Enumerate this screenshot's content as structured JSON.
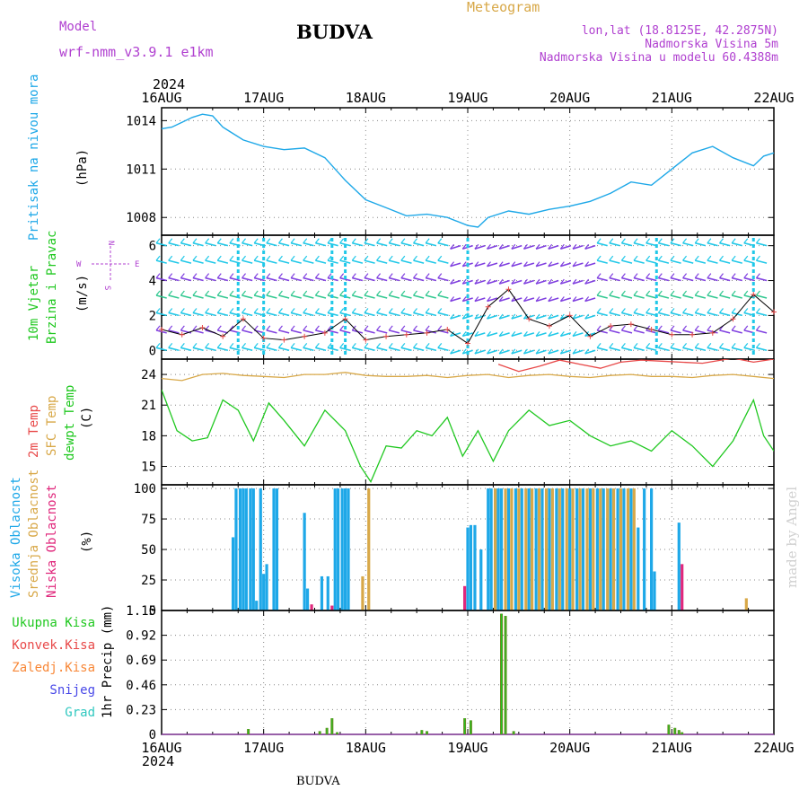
{
  "header": {
    "model_label": "Model",
    "model_name": "wrf-nmm_v3.9.1 e1km",
    "station_title": "BUDVA",
    "meteogram_label": "Meteogram",
    "coords": "lon,lat (18.8125E, 42.2875N)",
    "altitude": "Nadmorska Visina 5m",
    "model_altitude": "Nadmorska Visina u modelu 60.4388m",
    "bottom_station": "BUDVA",
    "watermark": "made by Angel"
  },
  "colors": {
    "pressure": "#1ea8e8",
    "temp2m": "#e84848",
    "sfc": "#d8a848",
    "dewpt": "#20c820",
    "cloud_high": "#1ea8e8",
    "cloud_mid": "#d8a848",
    "cloud_low": "#e0287c",
    "precip_total": "#20c820",
    "precip_conv": "#e84848",
    "precip_strat": "#f88838",
    "snow": "#4848e8",
    "graupel": "#30c8c0",
    "purple": "#b040d0"
  },
  "time_axis": {
    "year": "2024",
    "day_labels": [
      "16AUG",
      "17AUG",
      "18AUG",
      "19AUG",
      "20AUG",
      "21AUG",
      "22AUG"
    ],
    "start": "2024-08-16 00:00",
    "end": "2024-08-22 00:00"
  },
  "chart_data": [
    {
      "type": "line",
      "panel": "pressure",
      "ylabel_1": "Pritisak na nivou mora",
      "ylabel_2": "(hPa)",
      "yticks": [
        1008,
        1011,
        1014
      ],
      "ylim": [
        1006.9,
        1014.8
      ],
      "grid": true,
      "series": [
        {
          "x_days": [
            0,
            0.1,
            0.2,
            0.3,
            0.4,
            0.5,
            0.6,
            0.8,
            1.0,
            1.2,
            1.4,
            1.6,
            1.8,
            2.0,
            2.2,
            2.4,
            2.6,
            2.8,
            3.0,
            3.1,
            3.2,
            3.4,
            3.6,
            3.8,
            4.0,
            4.2,
            4.4,
            4.6,
            4.8,
            5.0,
            5.2,
            5.4,
            5.6,
            5.8,
            5.9,
            6.0
          ],
          "values": [
            1013.5,
            1013.6,
            1013.9,
            1014.2,
            1014.4,
            1014.3,
            1013.6,
            1012.8,
            1012.4,
            1012.2,
            1012.3,
            1011.7,
            1010.3,
            1009.1,
            1008.6,
            1008.1,
            1008.2,
            1008.0,
            1007.5,
            1007.4,
            1008.0,
            1008.4,
            1008.2,
            1008.5,
            1008.7,
            1009.0,
            1009.5,
            1010.2,
            1010.0,
            1011.0,
            1012.0,
            1012.4,
            1011.7,
            1011.2,
            1011.8,
            1012.0
          ]
        }
      ]
    },
    {
      "type": "line",
      "panel": "wind",
      "ylabel_1": "10m Vjetar",
      "ylabel_2": "Brzina i Pravac",
      "ylabel_3": "(m/s)",
      "compass": {
        "n": "N",
        "s": "S",
        "w": "W",
        "e": "E"
      },
      "yticks": [
        0,
        2,
        4,
        6
      ],
      "ylim": [
        -0.5,
        6.6
      ],
      "grid": true,
      "series": [
        {
          "x_days": [
            0,
            0.2,
            0.4,
            0.6,
            0.8,
            1.0,
            1.2,
            1.4,
            1.6,
            1.8,
            2.0,
            2.2,
            2.4,
            2.6,
            2.8,
            3.0,
            3.2,
            3.4,
            3.6,
            3.8,
            4.0,
            4.2,
            4.4,
            4.6,
            4.8,
            5.0,
            5.2,
            5.4,
            5.6,
            5.8,
            6.0
          ],
          "values": [
            1.2,
            0.9,
            1.3,
            0.8,
            1.8,
            0.7,
            0.6,
            0.8,
            1.0,
            1.8,
            0.6,
            0.8,
            0.9,
            1.0,
            1.2,
            0.4,
            2.5,
            3.5,
            1.8,
            1.4,
            2.0,
            0.8,
            1.4,
            1.5,
            1.2,
            0.9,
            0.9,
            1.0,
            1.8,
            3.2,
            2.2
          ]
        }
      ]
    },
    {
      "type": "line",
      "panel": "temperature",
      "ylabel_1": "2m Temp",
      "ylabel_2": "SFC Temp",
      "ylabel_3": "dewpt Temp",
      "ylabel_4": "(C)",
      "yticks": [
        15,
        18,
        21,
        24
      ],
      "ylim": [
        13.2,
        25.5
      ],
      "grid": true,
      "series": [
        {
          "name": "2m Temp",
          "x_days": [
            3.3,
            3.5,
            3.7,
            3.9,
            4.1,
            4.3,
            4.5,
            4.7,
            4.9,
            5.3,
            5.6,
            5.8,
            6.0
          ],
          "values": [
            25.0,
            24.3,
            24.8,
            25.4,
            25.0,
            24.6,
            25.2,
            25.4,
            25.3,
            25.1,
            25.6,
            25.2,
            25.5
          ]
        },
        {
          "name": "SFC Temp",
          "x_days": [
            0,
            0.2,
            0.4,
            0.6,
            0.8,
            1.0,
            1.2,
            1.4,
            1.6,
            1.8,
            2.0,
            2.2,
            2.4,
            2.6,
            2.8,
            3.0,
            3.2,
            3.4,
            3.6,
            3.8,
            4.0,
            4.2,
            4.4,
            4.6,
            4.8,
            5.0,
            5.2,
            5.4,
            5.6,
            5.8,
            6.0
          ],
          "values": [
            23.6,
            23.4,
            24.0,
            24.1,
            23.9,
            23.8,
            23.7,
            24.0,
            24.0,
            24.2,
            23.9,
            23.8,
            23.8,
            23.9,
            23.7,
            23.9,
            24.0,
            23.7,
            23.9,
            24.0,
            23.8,
            23.7,
            23.9,
            24.0,
            23.8,
            23.8,
            23.7,
            23.9,
            24.0,
            23.8,
            23.6
          ]
        },
        {
          "name": "dewpt Temp",
          "x_days": [
            0,
            0.15,
            0.3,
            0.45,
            0.6,
            0.75,
            0.9,
            1.05,
            1.2,
            1.4,
            1.6,
            1.8,
            1.95,
            2.05,
            2.2,
            2.35,
            2.5,
            2.65,
            2.8,
            2.95,
            3.1,
            3.25,
            3.4,
            3.6,
            3.8,
            4.0,
            4.2,
            4.4,
            4.6,
            4.8,
            5.0,
            5.2,
            5.4,
            5.6,
            5.8,
            5.9,
            6.0
          ],
          "values": [
            22.5,
            18.5,
            17.5,
            17.8,
            21.5,
            20.5,
            17.5,
            21.2,
            19.5,
            17.0,
            20.5,
            18.5,
            15.0,
            13.5,
            17.0,
            16.8,
            18.5,
            18.0,
            19.8,
            16.0,
            18.5,
            15.5,
            18.5,
            20.5,
            19.0,
            19.5,
            18.0,
            17.0,
            17.5,
            16.5,
            18.5,
            17.0,
            15.0,
            17.5,
            21.5,
            18.0,
            16.5
          ]
        }
      ]
    },
    {
      "type": "bar",
      "panel": "clouds",
      "ylabel_1": "Visoka Oblacnost",
      "ylabel_2": "Srednja Oblacnost",
      "ylabel_3": "Niska Oblacnost",
      "ylabel_4": "(%)",
      "yticks": [
        0,
        25,
        50,
        75,
        100
      ],
      "ylim": [
        0,
        103
      ],
      "grid": true,
      "series": [
        {
          "name": "Visoka Oblacnost",
          "x_days": [
            0.7,
            0.73,
            0.77,
            0.8,
            0.83,
            0.87,
            0.9,
            0.93,
            0.97,
            1.0,
            1.03,
            1.1,
            1.13,
            1.4,
            1.43,
            1.57,
            1.63,
            1.7,
            1.73,
            1.77,
            1.8,
            1.83,
            3.0,
            3.03,
            3.07,
            3.13,
            3.2,
            3.23,
            3.27,
            3.3,
            3.33,
            3.4,
            3.47,
            3.53,
            3.6,
            3.67,
            3.73,
            3.8,
            3.87,
            3.93,
            4.0,
            4.07,
            4.13,
            4.2,
            4.27,
            4.33,
            4.4,
            4.47,
            4.53,
            4.6,
            4.67,
            4.73,
            4.8,
            4.83,
            5.07
          ],
          "values": [
            60,
            100,
            100,
            100,
            100,
            100,
            100,
            8,
            100,
            30,
            38,
            100,
            100,
            80,
            18,
            28,
            28,
            100,
            100,
            100,
            100,
            100,
            68,
            70,
            70,
            50,
            100,
            100,
            100,
            100,
            100,
            100,
            100,
            100,
            100,
            100,
            100,
            100,
            100,
            100,
            100,
            100,
            100,
            100,
            100,
            100,
            100,
            100,
            100,
            100,
            68,
            100,
            100,
            32,
            72
          ]
        },
        {
          "name": "Srednja Oblacnost",
          "x_days": [
            1.97,
            2.03,
            3.27,
            3.37,
            3.43,
            3.5,
            3.57,
            3.63,
            3.7,
            3.77,
            3.83,
            3.9,
            3.97,
            4.03,
            4.1,
            4.17,
            4.23,
            4.3,
            4.37,
            4.43,
            4.5,
            4.57,
            4.63,
            5.73
          ],
          "values": [
            28,
            100,
            100,
            100,
            100,
            100,
            100,
            100,
            100,
            100,
            100,
            100,
            100,
            100,
            100,
            100,
            100,
            100,
            100,
            100,
            100,
            100,
            100,
            10
          ]
        },
        {
          "name": "Niska Oblacnost",
          "x_days": [
            1.47,
            1.67,
            2.97,
            5.1
          ],
          "values": [
            5,
            4,
            20,
            38
          ]
        }
      ]
    },
    {
      "type": "bar",
      "panel": "precip",
      "legend": [
        "Ukupna Kisa",
        "Konvek.Kisa",
        "Zaledj.Kisa",
        "Snijeg",
        "Grad"
      ],
      "ylabel": "1hr Precip (mm)",
      "yticks": [
        0,
        0.23,
        0.46,
        0.69,
        0.92,
        1.15
      ],
      "ylim": [
        0,
        1.15
      ],
      "grid": true,
      "series": [
        {
          "name": "Ukupna Kisa",
          "x_days": [
            0.85,
            1.55,
            1.62,
            1.67,
            1.72,
            2.55,
            2.6,
            2.97,
            3.03,
            3.33,
            3.37,
            3.45,
            4.97,
            5.03,
            5.07,
            5.1
          ],
          "values": [
            0.05,
            0.03,
            0.06,
            0.15,
            0.02,
            0.04,
            0.03,
            0.15,
            0.13,
            1.12,
            1.1,
            0.03,
            0.09,
            0.06,
            0.04,
            0.02
          ]
        }
      ]
    }
  ]
}
